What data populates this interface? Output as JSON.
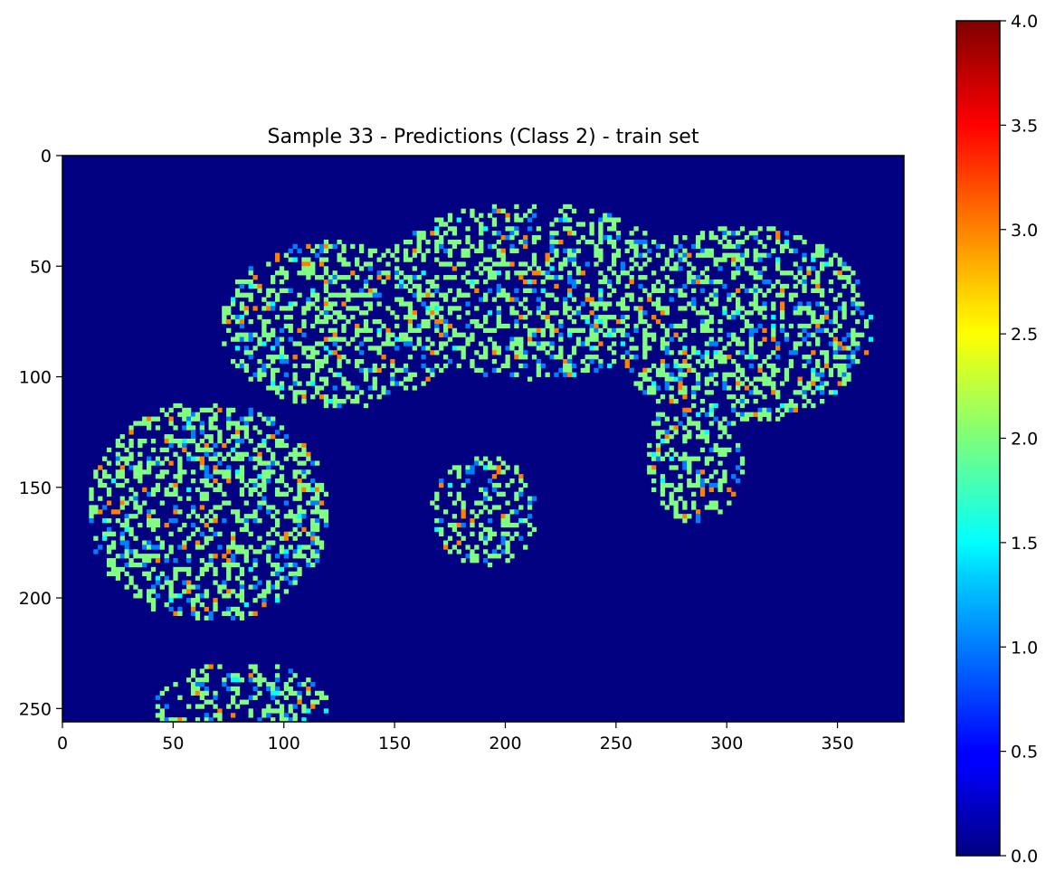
{
  "chart_data": {
    "type": "heatmap",
    "title": "Sample 33 - Predictions (Class 2) - train set",
    "image_shape": {
      "rows": 256,
      "cols": 380
    },
    "colormap": "jet",
    "background_value": 0.0,
    "dominant_foreground_value": 2.0,
    "x_ticks": [
      0,
      50,
      100,
      150,
      200,
      250,
      300,
      350
    ],
    "y_ticks": [
      0,
      50,
      100,
      150,
      200,
      250
    ],
    "xlim": [
      0,
      380
    ],
    "ylim": [
      256,
      0
    ],
    "colorbar": {
      "range": [
        0.0,
        4.0
      ],
      "ticks": [
        "0.0",
        "0.5",
        "1.0",
        "1.5",
        "2.0",
        "2.5",
        "3.0",
        "3.5",
        "4.0"
      ]
    },
    "regions": [
      {
        "type": "ellipse",
        "cx": 305,
        "cy": 75,
        "rx": 60,
        "ry": 45
      },
      {
        "type": "ellipse",
        "cx": 210,
        "cy": 60,
        "rx": 70,
        "ry": 40
      },
      {
        "type": "ellipse",
        "cx": 125,
        "cy": 75,
        "rx": 55,
        "ry": 38
      },
      {
        "type": "ellipse",
        "cx": 65,
        "cy": 160,
        "rx": 55,
        "ry": 50
      },
      {
        "type": "ellipse",
        "cx": 80,
        "cy": 250,
        "rx": 40,
        "ry": 22
      },
      {
        "type": "ellipse",
        "cx": 285,
        "cy": 135,
        "rx": 22,
        "ry": 30
      },
      {
        "type": "ellipse",
        "cx": 190,
        "cy": 160,
        "rx": 25,
        "ry": 25
      }
    ]
  }
}
